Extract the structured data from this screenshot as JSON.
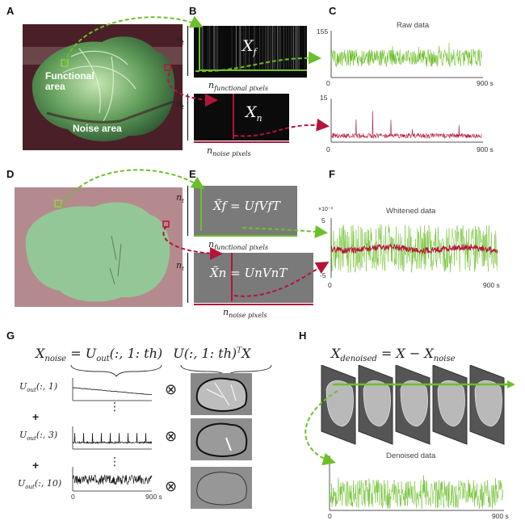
{
  "panels": {
    "A": {
      "letter": "A",
      "functional_label": "Functional area",
      "noise_label": "Noise area"
    },
    "B": {
      "letter": "B",
      "nt": "n",
      "nt_sub": "t",
      "xf": "X",
      "xf_sub": "f",
      "xn": "X",
      "xn_sub": "n",
      "nfunc": "n",
      "nfunc_sub": "functional pixels",
      "nnoise": "n",
      "nnoise_sub": "noise pixels"
    },
    "C": {
      "letter": "C",
      "title": "Raw data",
      "top_max": "155",
      "top_zero": "0",
      "top_end": "900 s",
      "bot_max": "15",
      "bot_zero": "0",
      "bot_end": "900 s"
    },
    "D": {
      "letter": "D"
    },
    "E": {
      "letter": "E",
      "nt": "n",
      "nt_sub": "t",
      "eq_f": "X̃f = UfVfT",
      "eq_n": "X̃n = UnVnT",
      "nfunc": "n",
      "nfunc_sub": "functional pixels",
      "nnoise": "n",
      "nnoise_sub": "noise pixels"
    },
    "F": {
      "letter": "F",
      "title": "Whitened data",
      "scale": "×10⁻³",
      "ymax": "5",
      "ymin": "-5",
      "x0": "0",
      "xend": "900 s"
    },
    "G": {
      "letter": "G",
      "eq_lhs": "X",
      "eq_lhs_sub": "noise",
      "eq_rhs": "= U",
      "eq_rhs_sub": "out",
      "eq_rhs_args": "(:, 1: th)",
      "eq_proj": "U(:, 1: th)",
      "eq_proj_tail": "X",
      "rows": [
        {
          "label": "U",
          "sub": "out",
          "args": "(:, 1)"
        },
        {
          "label": "U",
          "sub": "out",
          "args": "(:, 3)"
        },
        {
          "label": "U",
          "sub": "out",
          "args": "(:, 10)"
        }
      ],
      "plus": "+",
      "dots": "⋮",
      "otimes": "⊗",
      "x0": "0",
      "xend": "900 s"
    },
    "H": {
      "letter": "H",
      "eq": "X",
      "eq_sub": "denoised",
      "eq_rest": "= X − X",
      "eq_rest_sub": "noise",
      "title": "Denoised data",
      "x0": "0",
      "xend": "900 s"
    }
  },
  "colors": {
    "green": "#6cbf2a",
    "red": "#b5143a",
    "dark": "#111111",
    "grey": "#7a7a7a"
  }
}
